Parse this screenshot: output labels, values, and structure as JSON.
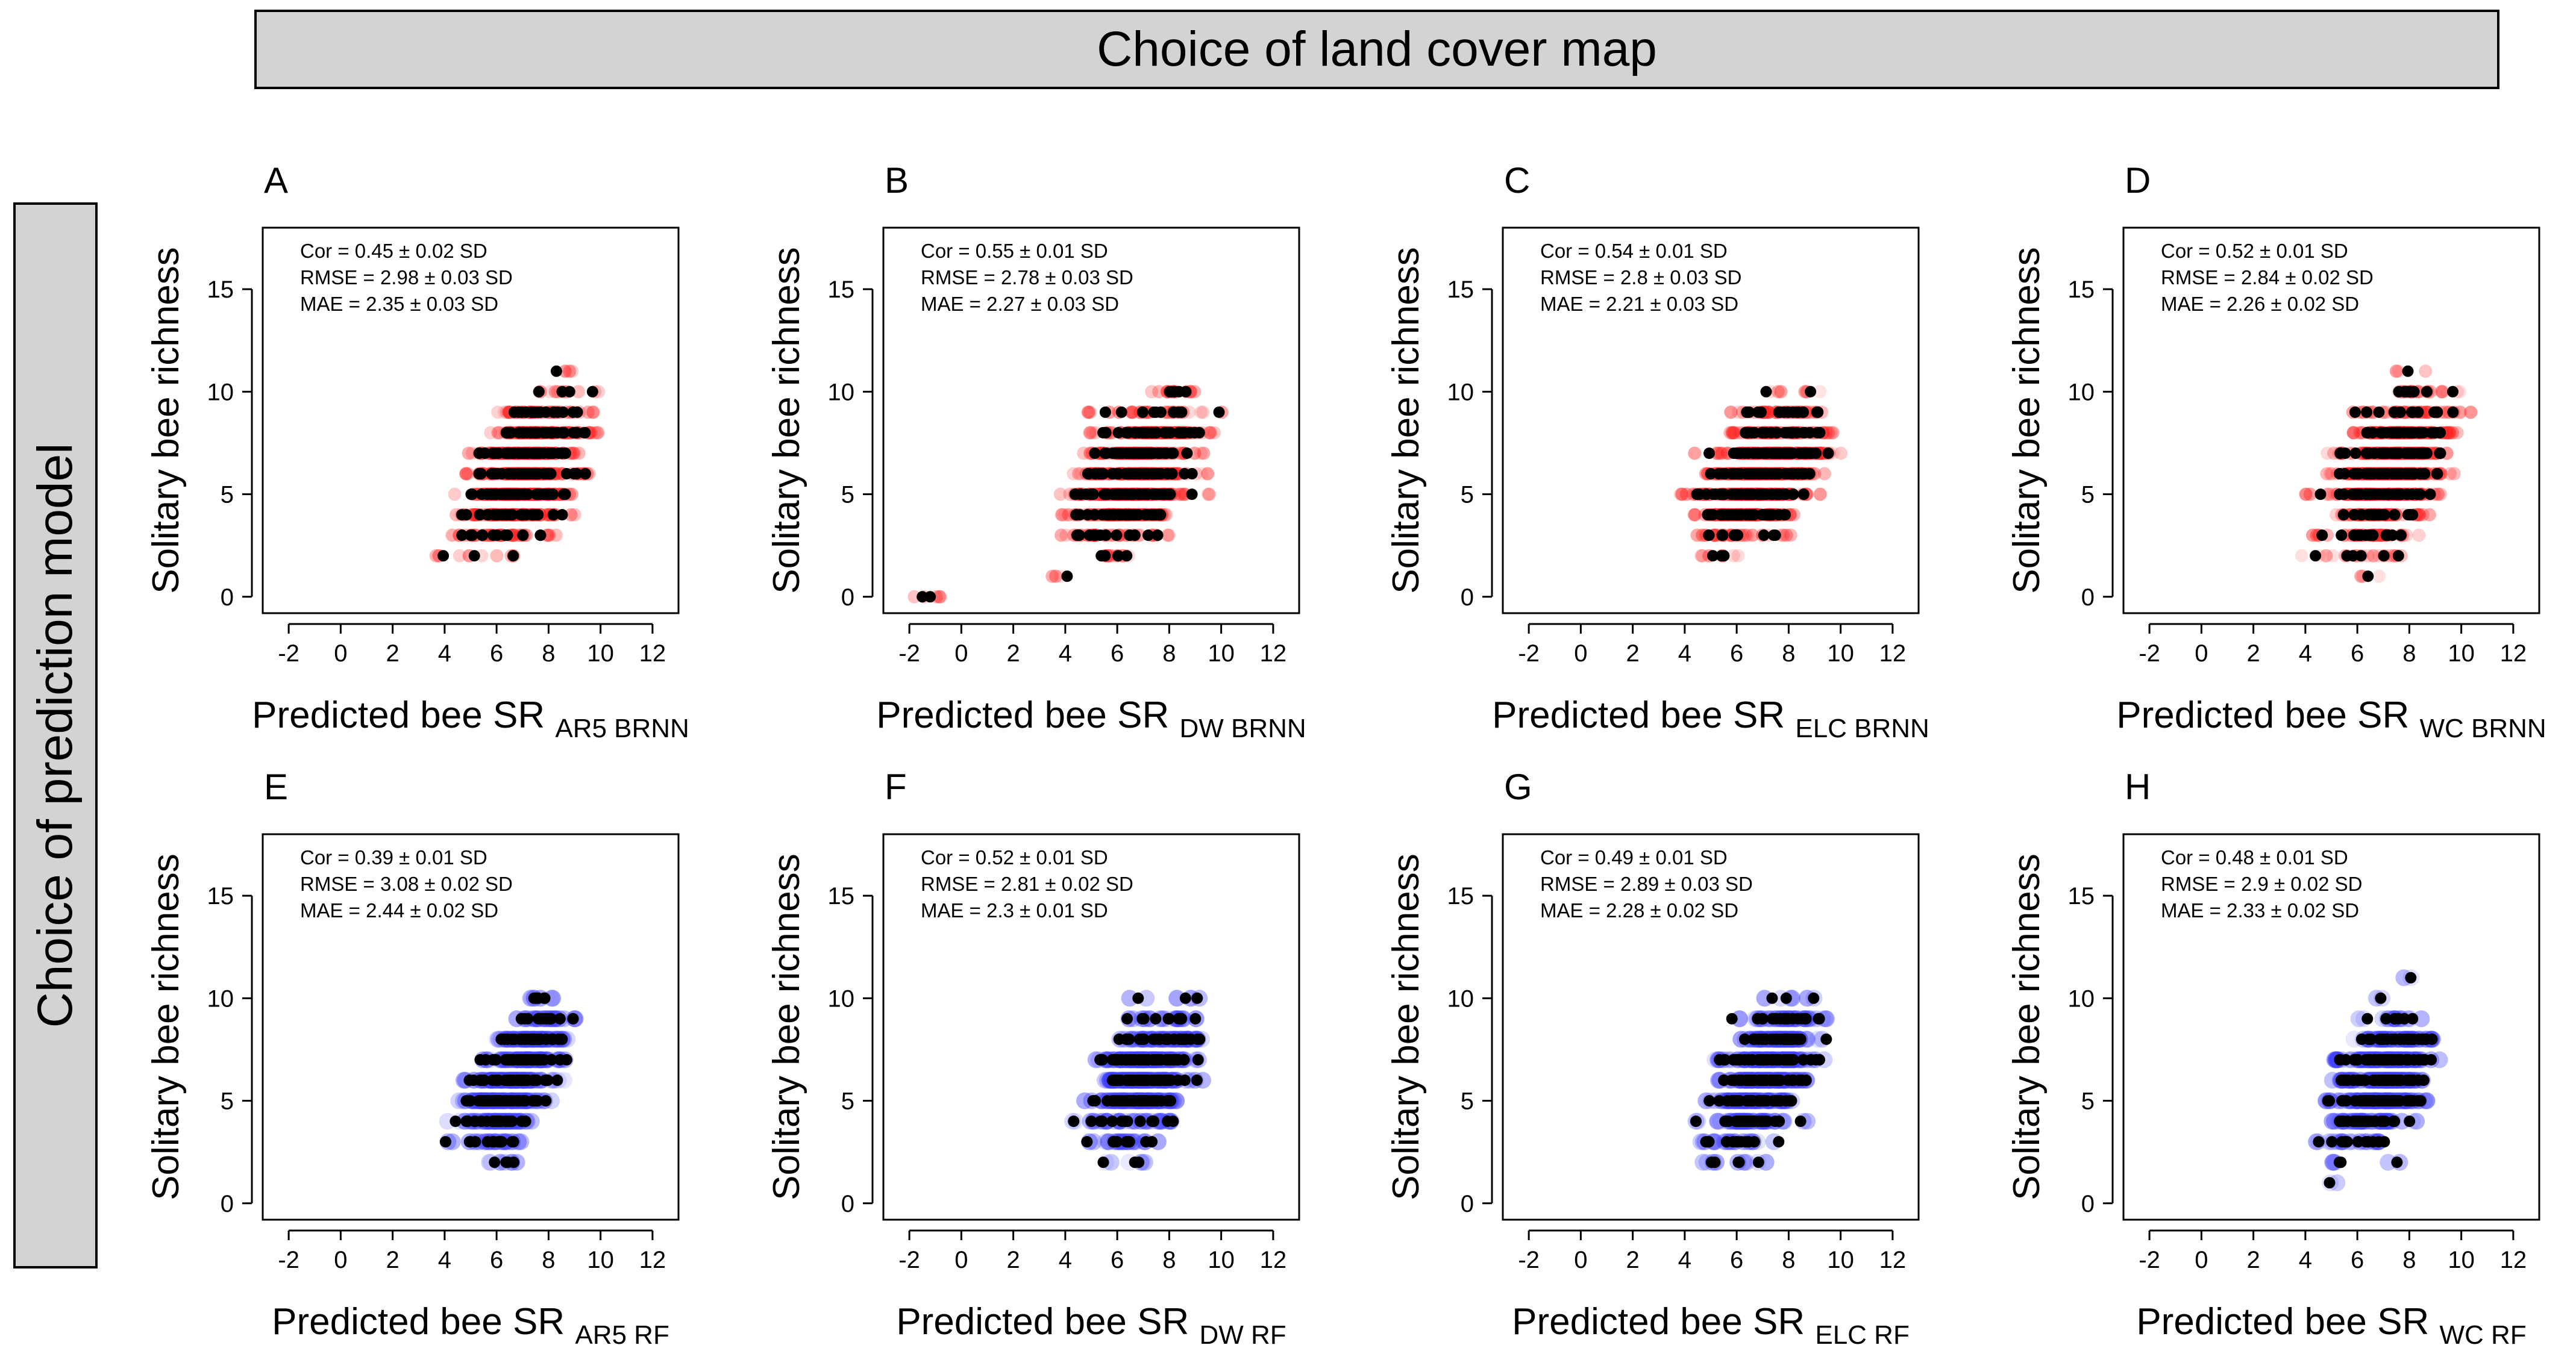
{
  "header": {
    "title": "Choice of land cover map"
  },
  "side": {
    "title": "Choice of prediction model"
  },
  "colors": {
    "observed": "#000000",
    "brnn_cloud": "#ff2020",
    "rf_cloud": "#4040ff"
  },
  "chart_data": [
    {
      "panel": "A",
      "type": "scatter",
      "model": "BRNN",
      "xlabel": "Predicted bee SR",
      "xlabel_sub": "AR5 BRNN",
      "ylabel": "Solitary bee richness",
      "xlim": [
        -3,
        13
      ],
      "ylim": [
        -0.8,
        18
      ],
      "xticks": [
        "-2",
        "0",
        "2",
        "4",
        "6",
        "8",
        "10",
        "12"
      ],
      "yticks": [
        "0",
        "5",
        "10",
        "15"
      ],
      "stats": [
        "Cor = 0.45 ± 0.02 SD",
        "RMSE = 2.98 ± 0.03 SD",
        "MAE = 2.35 ± 0.03 SD"
      ],
      "x_range": [
        1.5,
        10.5
      ],
      "center": 7.5,
      "spread": 1.0,
      "seed": 11
    },
    {
      "panel": "B",
      "type": "scatter",
      "model": "BRNN",
      "xlabel": "Predicted bee SR",
      "xlabel_sub": "DW BRNN",
      "ylabel": "Solitary bee richness",
      "xlim": [
        -3,
        13
      ],
      "ylim": [
        -0.8,
        18
      ],
      "xticks": [
        "-2",
        "0",
        "2",
        "4",
        "6",
        "8",
        "10",
        "12"
      ],
      "yticks": [
        "0",
        "5",
        "10",
        "15"
      ],
      "stats": [
        "Cor = 0.55 ± 0.01 SD",
        "RMSE = 2.78 ± 0.03 SD",
        "MAE = 2.27 ± 0.03 SD"
      ],
      "x_range": [
        1.2,
        11.0
      ],
      "center": 7.3,
      "spread": 1.1,
      "seed": 23,
      "extra_points": [
        [
          -1.5,
          0
        ],
        [
          -1.2,
          0
        ]
      ]
    },
    {
      "panel": "C",
      "type": "scatter",
      "model": "BRNN",
      "xlabel": "Predicted bee SR",
      "xlabel_sub": "ELC BRNN",
      "ylabel": "Solitary bee richness",
      "xlim": [
        -3,
        13
      ],
      "ylim": [
        -0.8,
        18
      ],
      "xticks": [
        "-2",
        "0",
        "2",
        "4",
        "6",
        "8",
        "10",
        "12"
      ],
      "yticks": [
        "0",
        "5",
        "10",
        "15"
      ],
      "stats": [
        "Cor = 0.54 ± 0.01 SD",
        "RMSE = 2.8 ± 0.03 SD",
        "MAE = 2.21 ± 0.03 SD"
      ],
      "x_range": [
        1.0,
        11.5
      ],
      "center": 7.6,
      "spread": 1.1,
      "seed": 37
    },
    {
      "panel": "D",
      "type": "scatter",
      "model": "BRNN",
      "xlabel": "Predicted bee SR",
      "xlabel_sub": "WC BRNN",
      "ylabel": "Solitary bee richness",
      "xlim": [
        -3,
        13
      ],
      "ylim": [
        -0.8,
        18
      ],
      "xticks": [
        "-2",
        "0",
        "2",
        "4",
        "6",
        "8",
        "10",
        "12"
      ],
      "yticks": [
        "0",
        "5",
        "10",
        "15"
      ],
      "stats": [
        "Cor = 0.52 ± 0.01 SD",
        "RMSE = 2.84 ± 0.02 SD",
        "MAE = 2.26 ± 0.02 SD"
      ],
      "x_range": [
        1.0,
        11.0
      ],
      "center": 7.8,
      "spread": 1.0,
      "seed": 41
    },
    {
      "panel": "E",
      "type": "scatter",
      "model": "RF",
      "xlabel": "Predicted bee SR",
      "xlabel_sub": "AR5 RF",
      "ylabel": "Solitary bee richness",
      "xlim": [
        -3,
        13
      ],
      "ylim": [
        -0.8,
        18
      ],
      "xticks": [
        "-2",
        "0",
        "2",
        "4",
        "6",
        "8",
        "10",
        "12"
      ],
      "yticks": [
        "0",
        "5",
        "10",
        "15"
      ],
      "stats": [
        "Cor = 0.39 ± 0.01 SD",
        "RMSE = 3.08 ± 0.02 SD",
        "MAE = 2.44 ± 0.02 SD"
      ],
      "x_range": [
        2.0,
        9.5
      ],
      "center": 7.3,
      "spread": 0.8,
      "seed": 53
    },
    {
      "panel": "F",
      "type": "scatter",
      "model": "RF",
      "xlabel": "Predicted bee SR",
      "xlabel_sub": "DW RF",
      "ylabel": "Solitary bee richness",
      "xlim": [
        -3,
        13
      ],
      "ylim": [
        -0.8,
        18
      ],
      "xticks": [
        "-2",
        "0",
        "2",
        "4",
        "6",
        "8",
        "10",
        "12"
      ],
      "yticks": [
        "0",
        "5",
        "10",
        "15"
      ],
      "stats": [
        "Cor = 0.52 ± 0.01 SD",
        "RMSE = 2.81 ± 0.02 SD",
        "MAE = 2.3 ± 0.01 SD"
      ],
      "x_range": [
        1.7,
        9.8
      ],
      "center": 7.5,
      "spread": 0.9,
      "seed": 61
    },
    {
      "panel": "G",
      "type": "scatter",
      "model": "RF",
      "xlabel": "Predicted bee SR",
      "xlabel_sub": "ELC RF",
      "ylabel": "Solitary bee richness",
      "xlim": [
        -3,
        13
      ],
      "ylim": [
        -0.8,
        18
      ],
      "xticks": [
        "-2",
        "0",
        "2",
        "4",
        "6",
        "8",
        "10",
        "12"
      ],
      "yticks": [
        "0",
        "5",
        "10",
        "15"
      ],
      "stats": [
        "Cor = 0.49 ± 0.01 SD",
        "RMSE = 2.89 ± 0.03 SD",
        "MAE = 2.28 ± 0.02 SD"
      ],
      "x_range": [
        1.5,
        10.5
      ],
      "center": 7.6,
      "spread": 0.9,
      "seed": 71
    },
    {
      "panel": "H",
      "type": "scatter",
      "model": "RF",
      "xlabel": "Predicted bee SR",
      "xlabel_sub": "WC RF",
      "ylabel": "Solitary bee richness",
      "xlim": [
        -3,
        13
      ],
      "ylim": [
        -0.8,
        18
      ],
      "xticks": [
        "-2",
        "0",
        "2",
        "4",
        "6",
        "8",
        "10",
        "12"
      ],
      "yticks": [
        "0",
        "5",
        "10",
        "15"
      ],
      "stats": [
        "Cor = 0.48 ± 0.01 SD",
        "RMSE = 2.9 ± 0.02 SD",
        "MAE = 2.33 ± 0.02 SD"
      ],
      "x_range": [
        1.7,
        10.8
      ],
      "center": 7.5,
      "spread": 0.9,
      "seed": 83
    }
  ]
}
